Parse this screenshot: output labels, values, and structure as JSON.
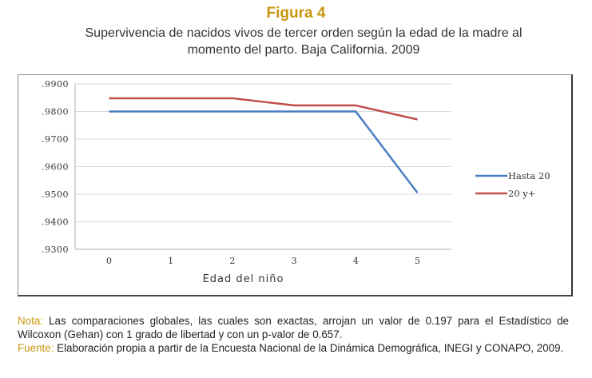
{
  "figure_label": "Figura 4",
  "subtitle_line1": "Supervivencia de nacidos vivos de tercer orden según la edad de la madre al",
  "subtitle_line2": "momento del parto. Baja California. 2009",
  "chart_data": {
    "type": "line",
    "x": [
      0,
      1,
      2,
      3,
      4,
      5
    ],
    "x_tick_labels": [
      "0",
      "1",
      "2",
      "3",
      "4",
      "5"
    ],
    "xlabel": "Edad del niño",
    "ylabel": "",
    "ylim": [
      0.93,
      0.99
    ],
    "y_tick_labels": [
      ".9900",
      ".9800",
      ".9700",
      ".9600",
      ".9500",
      ".9400",
      ".9300"
    ],
    "y_ticks": [
      0.99,
      0.98,
      0.97,
      0.96,
      0.95,
      0.94,
      0.93
    ],
    "grid": true,
    "legend_position": "right",
    "series": [
      {
        "name": "Hasta 20",
        "color": "#4a7cc4",
        "values": [
          0.98,
          0.98,
          0.98,
          0.98,
          0.98,
          0.9505
        ]
      },
      {
        "name": "20 y+",
        "color": "#c0504d",
        "values": [
          0.9848,
          0.9848,
          0.9848,
          0.9822,
          0.9822,
          0.9771
        ]
      }
    ]
  },
  "notes": {
    "nota_label": "Nota:",
    "nota_text": " Las comparaciones globales, las cuales son exactas, arrojan un valor de  0.197 para el Estadístico de Wilcoxon (Gehan) con 1 grado de libertad y con un p-valor de  0.657.",
    "fuente_label": "Fuente:",
    "fuente_text": " Elaboración propia a partir de la Encuesta Nacional de la Dinámica Demográfica, INEGI y CONAPO, 2009."
  }
}
